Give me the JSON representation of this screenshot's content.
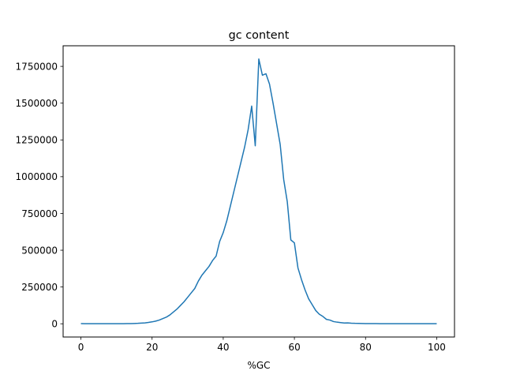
{
  "chart_data": {
    "type": "line",
    "title": "gc content",
    "xlabel": "%GC",
    "ylabel": "",
    "xlim": [
      -5,
      105
    ],
    "ylim": [
      -90000,
      1890000
    ],
    "xticks": [
      0,
      20,
      40,
      60,
      80,
      100
    ],
    "xtick_labels": [
      "0",
      "20",
      "40",
      "60",
      "80",
      "100"
    ],
    "yticks": [
      0,
      250000,
      500000,
      750000,
      1000000,
      1250000,
      1500000,
      1750000
    ],
    "ytick_labels": [
      "0",
      "250000",
      "500000",
      "750000",
      "1000000",
      "1250000",
      "1500000",
      "1750000"
    ],
    "grid": false,
    "legend": "none",
    "line_color": "#1f77b4",
    "series": [
      {
        "x": [
          0,
          1,
          2,
          3,
          4,
          5,
          6,
          7,
          8,
          9,
          10,
          11,
          12,
          13,
          14,
          15,
          16,
          17,
          18,
          19,
          20,
          21,
          22,
          23,
          24,
          25,
          26,
          27,
          28,
          29,
          30,
          31,
          32,
          33,
          34,
          35,
          36,
          37,
          38,
          39,
          40,
          41,
          42,
          43,
          44,
          45,
          46,
          47,
          48,
          49,
          50,
          51,
          52,
          53,
          54,
          55,
          56,
          57,
          58,
          59,
          60,
          61,
          62,
          63,
          64,
          65,
          66,
          67,
          68,
          69,
          70,
          71,
          72,
          73,
          74,
          75,
          76,
          77,
          78,
          79,
          80,
          81,
          82,
          83,
          84,
          85,
          86,
          87,
          88,
          89,
          90,
          91,
          92,
          93,
          94,
          95,
          96,
          97,
          98,
          99,
          100
        ],
        "values": [
          1000,
          500,
          500,
          500,
          500,
          500,
          500,
          500,
          500,
          500,
          500,
          700,
          800,
          1000,
          1500,
          2000,
          3000,
          4500,
          6000,
          9000,
          13000,
          18000,
          25000,
          35000,
          45000,
          60000,
          80000,
          100000,
          125000,
          150000,
          180000,
          210000,
          240000,
          290000,
          330000,
          360000,
          390000,
          430000,
          460000,
          560000,
          620000,
          700000,
          800000,
          900000,
          1000000,
          1100000,
          1200000,
          1320000,
          1480000,
          1210000,
          1800000,
          1690000,
          1700000,
          1630000,
          1500000,
          1360000,
          1220000,
          980000,
          830000,
          570000,
          550000,
          380000,
          300000,
          230000,
          170000,
          130000,
          90000,
          65000,
          50000,
          30000,
          25000,
          15000,
          11000,
          8000,
          5000,
          6000,
          4000,
          3000,
          2500,
          2000,
          1500,
          1200,
          1000,
          900,
          800,
          700,
          600,
          500,
          500,
          500,
          500,
          500,
          500,
          500,
          500,
          500,
          500,
          500,
          500,
          500,
          500
        ]
      }
    ]
  }
}
